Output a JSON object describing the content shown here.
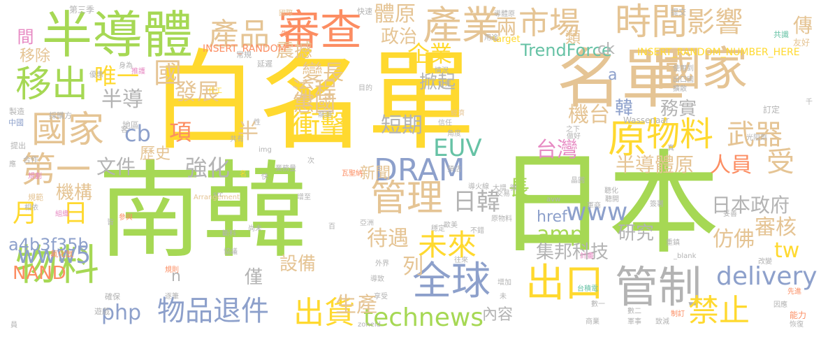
{
  "words": [
    {
      "text": "南韓",
      "color": "#A6D854"
    },
    {
      "text": "日本",
      "color": "#A6D854"
    },
    {
      "text": "白名單",
      "color": "#FFD92F"
    },
    {
      "text": "名單",
      "color": "#E5C494"
    },
    {
      "text": "半導體",
      "color": "#A6D854"
    },
    {
      "text": "國家",
      "color": "#E5C494"
    },
    {
      "text": "審查",
      "color": "#FC8D62"
    },
    {
      "text": "產業",
      "color": "#E5C494"
    },
    {
      "text": "時間",
      "color": "#E5C494"
    },
    {
      "text": "管制",
      "color": "#B3B3B3"
    },
    {
      "text": "出口",
      "color": "#FFD92F"
    },
    {
      "text": "物料",
      "color": "#A6D854"
    },
    {
      "text": "國家",
      "color": "#E5C494"
    },
    {
      "text": "移出",
      "color": "#A6D854"
    },
    {
      "text": "原",
      "color": "#FFD92F"
    },
    {
      "text": "物料",
      "color": "#FFD92F"
    },
    {
      "text": "管理",
      "color": "#E5C494"
    },
    {
      "text": "全球",
      "color": "#8DA0CB"
    },
    {
      "text": "DRAM",
      "color": "#8DA0CB"
    },
    {
      "text": "產品",
      "color": "#E5C494"
    },
    {
      "text": "市場",
      "color": "#E5C494"
    },
    {
      "text": "影響",
      "color": "#E5C494"
    },
    {
      "text": "第一",
      "color": "#E5C494"
    },
    {
      "text": "衝擊",
      "color": "#FFD92F"
    },
    {
      "text": "武器",
      "color": "#E5C494"
    },
    {
      "text": "未來",
      "color": "#FFD92F"
    },
    {
      "text": "物品退件",
      "color": "#8DA0CB"
    },
    {
      "text": "出貨",
      "color": "#FFD92F"
    },
    {
      "text": "禁止",
      "color": "#FFD92F"
    },
    {
      "text": "technews",
      "color": "#A6D854"
    },
    {
      "text": "www5",
      "color": "#8DA0CB"
    },
    {
      "text": "delivery",
      "color": "#8DA0CB"
    },
    {
      "text": "amp",
      "color": "#A6D854"
    },
    {
      "text": "www",
      "color": "#8DA0CB"
    },
    {
      "text": "日韓",
      "color": "#B3B3B3"
    },
    {
      "text": "發展",
      "color": "#E5C494"
    },
    {
      "text": "流程",
      "color": "#E5C494"
    },
    {
      "text": "強化",
      "color": "#B3B3B3"
    },
    {
      "text": "月",
      "color": "#FFD92F"
    },
    {
      "text": "日",
      "color": "#FFD92F"
    },
    {
      "text": "項",
      "color": "#FC8D62"
    },
    {
      "text": "cb",
      "color": "#8DA0CB"
    },
    {
      "text": "半導",
      "color": "#B3B3B3"
    },
    {
      "text": "唯一",
      "color": "#FFD92F"
    },
    {
      "text": "國",
      "color": "#E5C494"
    },
    {
      "text": "企業",
      "color": "#FFD92F"
    },
    {
      "text": "變長",
      "color": "#E5C494"
    },
    {
      "text": "惠國",
      "color": "#E5C494"
    },
    {
      "text": "短期",
      "color": "#B3B3B3"
    },
    {
      "text": "半",
      "color": "#E5C494"
    },
    {
      "text": "EUV",
      "color": "#66C2A5"
    },
    {
      "text": "台灣",
      "color": "#E78AC3"
    },
    {
      "text": "機台",
      "color": "#E5C494"
    },
    {
      "text": "半導體原",
      "color": "#E5C494"
    },
    {
      "text": "人員",
      "color": "#FC8D62"
    },
    {
      "text": "受",
      "color": "#E5C494"
    },
    {
      "text": "日本政府",
      "color": "#B3B3B3"
    },
    {
      "text": "審核",
      "color": "#E5C494"
    },
    {
      "text": "文件",
      "color": "#B3B3B3"
    },
    {
      "text": "長",
      "color": "#A6D854"
    },
    {
      "text": "待遇",
      "color": "#E5C494"
    },
    {
      "text": "列",
      "color": "#E5C494"
    },
    {
      "text": "生產",
      "color": "#E5C494"
    },
    {
      "text": "php",
      "color": "#8DA0CB"
    },
    {
      "text": "NAND",
      "color": "#FC8D62"
    },
    {
      "text": "tw",
      "color": "#FFD92F"
    },
    {
      "text": "研究",
      "color": "#B3B3B3"
    },
    {
      "text": "集邦科技",
      "color": "#B3B3B3"
    },
    {
      "text": "仿佛",
      "color": "#E5C494"
    },
    {
      "text": "href",
      "color": "#8DA0CB"
    },
    {
      "text": "a4b3f35b",
      "color": "#8DA0CB"
    },
    {
      "text": "TrendForce",
      "color": "#66C2A5"
    },
    {
      "text": "體原",
      "color": "#E5C494"
    },
    {
      "text": "政治",
      "color": "#E5C494"
    },
    {
      "text": "兩",
      "color": "#E5C494"
    },
    {
      "text": "震撼",
      "color": "#E5C494"
    },
    {
      "text": "掀起",
      "color": "#B3B3B3"
    },
    {
      "text": "務實",
      "color": "#B3B3B3"
    },
    {
      "text": "韓",
      "color": "#8DA0CB"
    },
    {
      "text": "新聞",
      "color": "#E5C494"
    },
    {
      "text": "歷史",
      "color": "#E5C494"
    },
    {
      "text": "機構",
      "color": "#E5C494"
    },
    {
      "text": "設備",
      "color": "#E5C494"
    },
    {
      "text": "僅",
      "color": "#B3B3B3"
    },
    {
      "text": "內容",
      "color": "#B3B3B3"
    },
    {
      "text": "間",
      "color": "#E78AC3"
    },
    {
      "text": "移除",
      "color": "#E5C494"
    },
    {
      "text": "類",
      "color": "#E5C494"
    },
    {
      "text": "傳",
      "color": "#E5C494"
    },
    {
      "text": "ck",
      "color": "#B3B3B3"
    },
    {
      "text": "a",
      "color": "#8DA0CB"
    },
    {
      "text": "n",
      "color": "#B3B3B3"
    },
    {
      "text": "INSERT_RANDOM",
      "color": "#FC8D62"
    },
    {
      "text": "INSERT_RANDOM_NUMBER_HERE",
      "color": "#FFD92F"
    },
    {
      "text": "第三季",
      "color": "#B3B3B3"
    },
    {
      "text": "國際",
      "color": "#E5C494"
    },
    {
      "text": "快速",
      "color": "#B3B3B3"
    },
    {
      "text": "導體原",
      "color": "#B3B3B3"
    },
    {
      "text": "提交",
      "color": "#B3B3B3"
    },
    {
      "text": "共識",
      "color": "#66C2A5"
    },
    {
      "text": "友好",
      "color": "#E5C494"
    },
    {
      "text": "target",
      "color": "#FFD92F"
    },
    {
      "text": "用途",
      "color": "#B3B3B3"
    },
    {
      "text": "先",
      "color": "#FC8D62"
    },
    {
      "text": "常規",
      "color": "#B3B3B3"
    },
    {
      "text": "延遲",
      "color": "#B3B3B3"
    },
    {
      "text": "身為",
      "color": "#B3B3B3"
    },
    {
      "text": "推護",
      "color": "#E78AC3"
    },
    {
      "text": "優惠",
      "color": "#B3B3B3"
    },
    {
      "text": "代工",
      "color": "#FFD92F"
    },
    {
      "text": "目的",
      "color": "#B3B3B3"
    },
    {
      "text": "情況",
      "color": "#B3B3B3"
    },
    {
      "text": "世界",
      "color": "#B3B3B3"
    },
    {
      "text": "使用到",
      "color": "#B3B3B3"
    },
    {
      "text": "出口國",
      "color": "#B3B3B3"
    },
    {
      "text": "擴散",
      "color": "#B3B3B3"
    },
    {
      "text": "訂定",
      "color": "#B3B3B3"
    },
    {
      "text": "Wassenaar",
      "color": "#B3B3B3"
    },
    {
      "text": "經濟",
      "color": "#E5C494"
    },
    {
      "text": "信任",
      "color": "#B3B3B3"
    },
    {
      "text": "角度",
      "color": "#B3B3B3"
    },
    {
      "text": "之下",
      "color": "#B3B3B3"
    },
    {
      "text": "做好",
      "color": "#B3B3B3"
    },
    {
      "text": "龍頭",
      "color": "#B3B3B3"
    },
    {
      "text": "採購方",
      "color": "#B3B3B3"
    },
    {
      "text": "地區",
      "color": "#B3B3B3"
    },
    {
      "text": "規劃",
      "color": "#E78AC3"
    },
    {
      "text": "製造",
      "color": "#B3B3B3"
    },
    {
      "text": "中國",
      "color": "#8DA0CB"
    },
    {
      "text": "性",
      "color": "#B3B3B3"
    },
    {
      "text": "共有",
      "color": "#B3B3B3"
    },
    {
      "text": "img",
      "color": "#B3B3B3"
    },
    {
      "text": "次",
      "color": "#B3B3B3"
    },
    {
      "text": "提出",
      "color": "#B3B3B3"
    },
    {
      "text": "合作",
      "color": "#B3B3B3"
    },
    {
      "text": "業務量",
      "color": "#B3B3B3"
    },
    {
      "text": "瓦聖納",
      "color": "#FC8D62"
    },
    {
      "text": "預估",
      "color": "#B3B3B3"
    },
    {
      "text": "src",
      "color": "#B3B3B3"
    },
    {
      "text": "Arrangement",
      "color": "#E5C494"
    },
    {
      "text": "規範",
      "color": "#E5C494"
    },
    {
      "text": "相依",
      "color": "#B3B3B3"
    },
    {
      "text": "導火線",
      "color": "#B3B3B3"
    },
    {
      "text": "大增",
      "color": "#B3B3B3"
    },
    {
      "text": "交易",
      "color": "#B3B3B3"
    },
    {
      "text": "微",
      "color": "#B3B3B3"
    },
    {
      "text": "組織",
      "color": "#E78AC3"
    },
    {
      "text": "增至",
      "color": "#B3B3B3"
    },
    {
      "text": "參與",
      "color": "#FC8D62"
    },
    {
      "text": "尚未",
      "color": "#B3B3B3"
    },
    {
      "text": "斷料",
      "color": "#B3B3B3"
    },
    {
      "text": "協議",
      "color": "#B3B3B3"
    },
    {
      "text": "皆",
      "color": "#B3B3B3"
    },
    {
      "text": "亞洲",
      "color": "#B3B3B3"
    },
    {
      "text": "百",
      "color": "#B3B3B3"
    },
    {
      "text": "歐美",
      "color": "#B3B3B3"
    },
    {
      "text": "穩定",
      "color": "#B3B3B3"
    },
    {
      "text": "不錯",
      "color": "#B3B3B3"
    },
    {
      "text": "外界",
      "color": "#B3B3B3"
    },
    {
      "text": "往來",
      "color": "#B3B3B3"
    },
    {
      "text": "計畫",
      "color": "#E78AC3"
    },
    {
      "text": "妥善",
      "color": "#B3B3B3"
    },
    {
      "text": "重鎮",
      "color": "#B3B3B3"
    },
    {
      "text": "_blank",
      "color": "#B3B3B3"
    },
    {
      "text": "改變",
      "color": "#B3B3B3"
    },
    {
      "text": "氟化氫",
      "color": "#FC8D62"
    },
    {
      "text": "規則",
      "color": "#FC8D62"
    },
    {
      "text": "確保",
      "color": "#B3B3B3"
    },
    {
      "text": "遊戲",
      "color": "#B3B3B3"
    },
    {
      "text": "逐筆",
      "color": "#B3B3B3"
    },
    {
      "text": "導致",
      "color": "#B3B3B3"
    },
    {
      "text": "享受",
      "color": "#B3B3B3"
    },
    {
      "text": "增加",
      "color": "#B3B3B3"
    },
    {
      "text": "未",
      "color": "#B3B3B3"
    },
    {
      "text": "zoneid",
      "color": "#B3B3B3"
    },
    {
      "text": "台積電",
      "color": "#66C2A5"
    },
    {
      "text": "數一",
      "color": "#B3B3B3"
    },
    {
      "text": "數二",
      "color": "#B3B3B3"
    },
    {
      "text": "商業",
      "color": "#B3B3B3"
    },
    {
      "text": "軍事",
      "color": "#B3B3B3"
    },
    {
      "text": "致減",
      "color": "#B3B3B3"
    },
    {
      "text": "制訂",
      "color": "#FC8D62"
    },
    {
      "text": "因應",
      "color": "#B3B3B3"
    },
    {
      "text": "能力",
      "color": "#FC8D62"
    },
    {
      "text": "恢復",
      "color": "#B3B3B3"
    },
    {
      "text": "先進",
      "color": "#FC8D62"
    },
    {
      "text": "員",
      "color": "#B3B3B3"
    },
    {
      "text": "應",
      "color": "#B3B3B3"
    },
    {
      "text": "光阻劑",
      "color": "#B3B3B3"
    },
    {
      "text": "真",
      "color": "#B3B3B3"
    },
    {
      "text": "晶圓",
      "color": "#B3B3B3"
    },
    {
      "text": "avw",
      "color": "#B3B3B3"
    },
    {
      "text": "聽化",
      "color": "#B3B3B3"
    },
    {
      "text": "聽開",
      "color": "#B3B3B3"
    },
    {
      "text": "軍商",
      "color": "#B3B3B3"
    },
    {
      "text": "簽署",
      "color": "#B3B3B3"
    },
    {
      "text": "原物料",
      "color": "#B3B3B3"
    },
    {
      "text": "千",
      "color": "#B3B3B3"
    },
    {
      "text": "名",
      "color": "#FFD92F"
    },
    {
      "text": "快",
      "color": "#B3B3B3"
    },
    {
      "text": "客",
      "color": "#B3B3B3"
    }
  ]
}
